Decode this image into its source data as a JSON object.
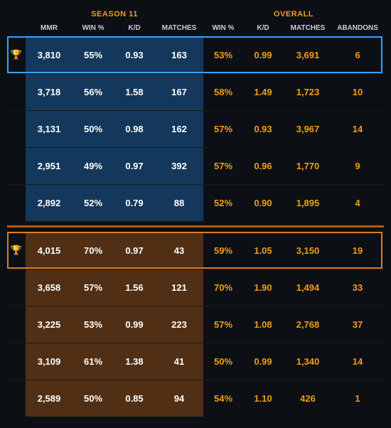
{
  "colors": {
    "background": "#0c1015",
    "accent": "#f39c12",
    "text": "#ffffff",
    "headerText": "#c9cfd6",
    "group1_tint": "#1e6fbf",
    "group1_outline": "#3aa0ff",
    "group2_tint": "#b05b12",
    "group2_outline": "#e07a1f",
    "group2_sep": "#b05b12"
  },
  "headers": {
    "season_label": "SEASON 11",
    "overall_label": "OVERALL",
    "season_cols": {
      "mmr": "MMR",
      "win": "WIN %",
      "kd": "K/D",
      "matches": "MATCHES"
    },
    "overall_cols": {
      "win": "WIN %",
      "kd": "K/D",
      "matches": "MATCHES",
      "abandons": "ABANDONS"
    }
  },
  "icons": {
    "trophy": "🏆"
  },
  "groups": [
    {
      "id": "group1",
      "tint_key": "group1_tint",
      "outline_key": "group1_outline",
      "rows": [
        {
          "trophy": true,
          "mmr": "3,810",
          "win": "55%",
          "kd": "0.93",
          "matches": "163",
          "owin": "53%",
          "okd": "0.99",
          "omatch": "3,691",
          "oaban": "6"
        },
        {
          "trophy": false,
          "mmr": "3,718",
          "win": "56%",
          "kd": "1.58",
          "matches": "167",
          "owin": "58%",
          "okd": "1.49",
          "omatch": "1,723",
          "oaban": "10"
        },
        {
          "trophy": false,
          "mmr": "3,131",
          "win": "50%",
          "kd": "0.98",
          "matches": "162",
          "owin": "57%",
          "okd": "0.93",
          "omatch": "3,967",
          "oaban": "14"
        },
        {
          "trophy": false,
          "mmr": "2,951",
          "win": "49%",
          "kd": "0.97",
          "matches": "392",
          "owin": "57%",
          "okd": "0.96",
          "omatch": "1,770",
          "oaban": "9"
        },
        {
          "trophy": false,
          "mmr": "2,892",
          "win": "52%",
          "kd": "0.79",
          "matches": "88",
          "owin": "52%",
          "okd": "0.90",
          "omatch": "1,895",
          "oaban": "4"
        }
      ]
    },
    {
      "id": "group2",
      "tint_key": "group2_tint",
      "outline_key": "group2_outline",
      "rows": [
        {
          "trophy": true,
          "mmr": "4,015",
          "win": "70%",
          "kd": "0.97",
          "matches": "43",
          "owin": "59%",
          "okd": "1.05",
          "omatch": "3,150",
          "oaban": "19"
        },
        {
          "trophy": false,
          "mmr": "3,658",
          "win": "57%",
          "kd": "1.56",
          "matches": "121",
          "owin": "70%",
          "okd": "1.90",
          "omatch": "1,494",
          "oaban": "33"
        },
        {
          "trophy": false,
          "mmr": "3,225",
          "win": "53%",
          "kd": "0.99",
          "matches": "223",
          "owin": "57%",
          "okd": "1.08",
          "omatch": "2,768",
          "oaban": "37"
        },
        {
          "trophy": false,
          "mmr": "3,109",
          "win": "61%",
          "kd": "1.38",
          "matches": "41",
          "owin": "50%",
          "okd": "0.99",
          "omatch": "1,340",
          "oaban": "14"
        },
        {
          "trophy": false,
          "mmr": "2,589",
          "win": "50%",
          "kd": "0.85",
          "matches": "94",
          "owin": "54%",
          "okd": "1.10",
          "omatch": "426",
          "oaban": "1"
        }
      ]
    }
  ]
}
